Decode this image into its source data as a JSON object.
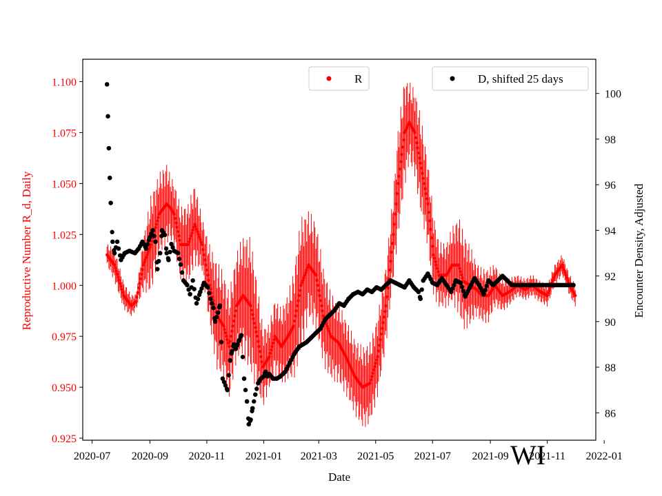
{
  "chart_data": {
    "type": "scatter",
    "state_label": "WI",
    "x_label": "Date",
    "y_left_label": "Reproductive Number R_d, Daily",
    "y_right_label": "Encounter Density, Adjusted",
    "x_ticks": [
      "2020-07",
      "2020-09",
      "2020-11",
      "2021-01",
      "2021-03",
      "2021-05",
      "2021-07",
      "2021-09",
      "2021-11",
      "2022-01"
    ],
    "y_left_ticks": [
      "0.925",
      "0.950",
      "0.975",
      "1.000",
      "1.025",
      "1.050",
      "1.075",
      "1.100"
    ],
    "y_right_ticks": [
      "86",
      "88",
      "90",
      "92",
      "94",
      "96",
      "98",
      "100"
    ],
    "x_range_days": [
      -10,
      540
    ],
    "y_left_range": [
      0.924,
      1.111
    ],
    "y_right_range": [
      84.8,
      101.5
    ],
    "colors": {
      "r_series": "#ff0000",
      "d_series": "#000000",
      "left_axis": "#ff0000"
    },
    "legend": [
      {
        "label": "R",
        "color": "#ff0000",
        "position": "top-center"
      },
      {
        "label": "D, shifted 25 days",
        "color": "#000000",
        "position": "top-right"
      }
    ],
    "series": [
      {
        "name": "R",
        "axis": "left",
        "style": "dots-with-errorbars",
        "x_days": [
          16,
          24,
          34,
          42,
          47,
          55,
          63,
          72,
          80,
          84,
          88,
          95,
          103,
          110,
          118,
          126,
          134,
          141,
          147,
          155,
          162,
          170,
          177,
          183,
          190,
          196,
          203,
          210,
          216,
          224,
          232,
          240,
          248,
          256,
          264,
          272,
          282,
          290,
          298,
          306,
          315,
          323,
          328,
          335,
          340,
          346,
          352,
          360,
          366,
          372,
          380,
          386,
          393,
          398,
          405,
          412,
          418,
          425,
          432,
          440,
          448,
          456,
          464,
          472,
          480,
          488,
          496,
          504,
          512,
          518
        ],
        "values": [
          1.015,
          1.01,
          0.995,
          0.99,
          0.992,
          1.01,
          1.02,
          1.035,
          1.04,
          1.038,
          1.035,
          1.02,
          1.02,
          1.03,
          1.02,
          1.0,
          0.985,
          0.98,
          0.97,
          0.99,
          0.995,
          0.99,
          0.975,
          0.96,
          0.965,
          0.975,
          0.97,
          0.975,
          0.98,
          1.0,
          1.01,
          1.005,
          0.985,
          0.975,
          0.972,
          0.965,
          0.955,
          0.95,
          0.952,
          0.965,
          0.99,
          1.025,
          1.05,
          1.075,
          1.08,
          1.075,
          1.06,
          1.04,
          1.015,
          1.005,
          1.005,
          1.01,
          1.01,
          1.002,
          1.0,
          0.998,
          0.995,
          0.995,
          1.0,
          0.995,
          0.997,
          1.0,
          0.998,
          1.0,
          0.997,
          0.995,
          1.005,
          1.01,
          1.0,
          0.995
        ],
        "err": [
          0.004,
          0.006,
          0.005,
          0.004,
          0.003,
          0.01,
          0.018,
          0.015,
          0.015,
          0.012,
          0.012,
          0.014,
          0.015,
          0.015,
          0.01,
          0.015,
          0.02,
          0.02,
          0.02,
          0.02,
          0.022,
          0.025,
          0.02,
          0.015,
          0.012,
          0.014,
          0.014,
          0.016,
          0.02,
          0.025,
          0.02,
          0.02,
          0.018,
          0.016,
          0.015,
          0.014,
          0.014,
          0.015,
          0.015,
          0.015,
          0.015,
          0.016,
          0.02,
          0.02,
          0.015,
          0.016,
          0.018,
          0.016,
          0.015,
          0.012,
          0.012,
          0.014,
          0.018,
          0.018,
          0.015,
          0.01,
          0.01,
          0.01,
          0.008,
          0.006,
          0.005,
          0.004,
          0.004,
          0.004,
          0.004,
          0.004,
          0.004,
          0.004,
          0.004,
          0.004
        ]
      },
      {
        "name": "D, shifted 25 days",
        "axis": "right",
        "style": "dots",
        "x_days": [
          16,
          17,
          18,
          19,
          20,
          22,
          24,
          27,
          31,
          35,
          40,
          46,
          50,
          54,
          58,
          62,
          65,
          68,
          70,
          73,
          75,
          78,
          80,
          82,
          85,
          88,
          92,
          95,
          98,
          102,
          105,
          108,
          112,
          116,
          120,
          124,
          127,
          130,
          132,
          135,
          137,
          140,
          145,
          148,
          150,
          152,
          154,
          156,
          158,
          160,
          163,
          166,
          168,
          170,
          172,
          175,
          178,
          181,
          184,
          186,
          188,
          190,
          194,
          198,
          202,
          207,
          212,
          217,
          222,
          226,
          230,
          235,
          240,
          245,
          250,
          255,
          260,
          265,
          270,
          275,
          280,
          285,
          290,
          295,
          300,
          305,
          310,
          315,
          320,
          325,
          330,
          335,
          340,
          345,
          350,
          352,
          355,
          360,
          365,
          370,
          375,
          380,
          385,
          390,
          395,
          400,
          405,
          410,
          415,
          420,
          425,
          430,
          440,
          450,
          460,
          470,
          480,
          490,
          500,
          510,
          516
        ],
        "values": [
          100.4,
          99.0,
          97.6,
          96.3,
          95.2,
          93.5,
          93.0,
          93.5,
          92.7,
          93.0,
          93.1,
          93.0,
          93.2,
          93.5,
          93.2,
          93.7,
          94.0,
          93.5,
          92.3,
          93.0,
          94.0,
          93.8,
          93.0,
          92.7,
          93.4,
          93.1,
          93.0,
          92.5,
          91.8,
          91.6,
          91.2,
          91.8,
          90.8,
          91.3,
          91.7,
          91.5,
          91.0,
          90.6,
          90.0,
          90.4,
          90.7,
          87.5,
          87.0,
          88.3,
          88.7,
          89.0,
          88.8,
          89.0,
          89.2,
          89.4,
          87.5,
          86.5,
          85.5,
          85.7,
          86.2,
          86.8,
          87.3,
          87.5,
          87.6,
          87.8,
          87.6,
          87.7,
          87.5,
          87.5,
          87.6,
          87.8,
          88.2,
          88.6,
          88.9,
          89.0,
          89.1,
          89.3,
          89.5,
          89.7,
          90.1,
          90.3,
          90.5,
          90.8,
          90.7,
          91.0,
          91.2,
          91.3,
          91.2,
          91.4,
          91.3,
          91.5,
          91.4,
          91.6,
          91.8,
          91.7,
          91.6,
          91.5,
          91.8,
          91.5,
          91.3,
          91.0,
          91.8,
          92.1,
          91.7,
          91.6,
          91.9,
          91.6,
          91.3,
          91.8,
          91.7,
          91.1,
          91.5,
          91.9,
          91.6,
          91.2,
          91.8,
          91.6,
          92.0,
          91.6,
          91.6,
          91.6,
          91.6,
          91.6,
          91.6,
          91.6,
          91.6
        ]
      }
    ]
  }
}
